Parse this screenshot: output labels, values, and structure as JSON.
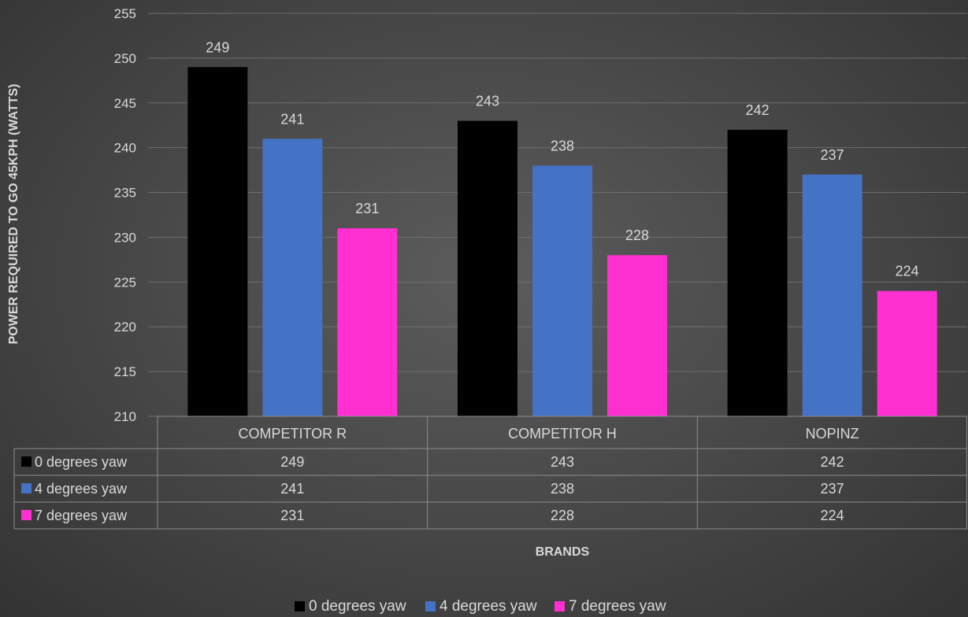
{
  "chart_data": {
    "type": "bar",
    "title": "",
    "xlabel": "BRANDS",
    "ylabel": "POWER REQUIRED TO GO 45KPH (WATTS)",
    "ylim": [
      210,
      255
    ],
    "yticks": [
      "210",
      "215",
      "220",
      "225",
      "230",
      "235",
      "240",
      "245",
      "250",
      "255"
    ],
    "grid": true,
    "legend": "bottom",
    "data_table": true,
    "categories": [
      "COMPETITOR R",
      "COMPETITOR H",
      "NOPINZ"
    ],
    "series": [
      {
        "name": "0 degrees yaw",
        "color": "#000000",
        "values": [
          249,
          243,
          242
        ]
      },
      {
        "name": "4 degrees yaw",
        "color": "#4472c4",
        "values": [
          241,
          238,
          237
        ]
      },
      {
        "name": "7 degrees yaw",
        "color": "#ff2fd1",
        "values": [
          231,
          228,
          224
        ]
      }
    ]
  }
}
